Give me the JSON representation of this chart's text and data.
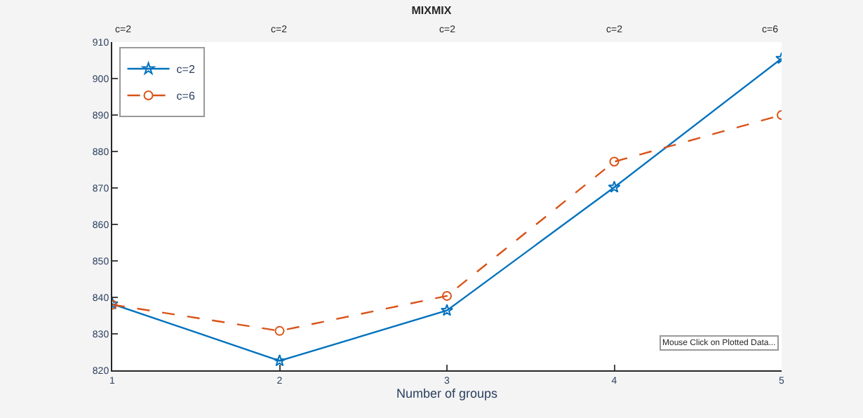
{
  "chart_data": {
    "type": "line",
    "title": "MIXMIX",
    "xlabel": "Number of groups",
    "x": [
      1,
      2,
      3,
      4,
      5
    ],
    "series": [
      {
        "name": "c=2",
        "color": "#0072bd",
        "values": [
          838.2,
          822.6,
          836.4,
          870.2,
          905.5
        ],
        "marker": "star",
        "line_style": "solid"
      },
      {
        "name": "c=6",
        "color": "#d95319",
        "values": [
          838.0,
          830.8,
          840.4,
          877.2,
          890.0
        ],
        "marker": "circle",
        "line_style": "dashed"
      }
    ],
    "xlim": [
      1,
      5
    ],
    "xticks": [
      1,
      2,
      3,
      4,
      5
    ],
    "ylim": [
      820,
      910
    ],
    "yticks": [
      820,
      830,
      840,
      850,
      860,
      870,
      880,
      890,
      900,
      910
    ],
    "legend": "top left",
    "annotations": [
      "c=2",
      "c=2",
      "c=2",
      "c=2",
      "c=6",
      "Mouse Click on Plotted Data..."
    ]
  }
}
